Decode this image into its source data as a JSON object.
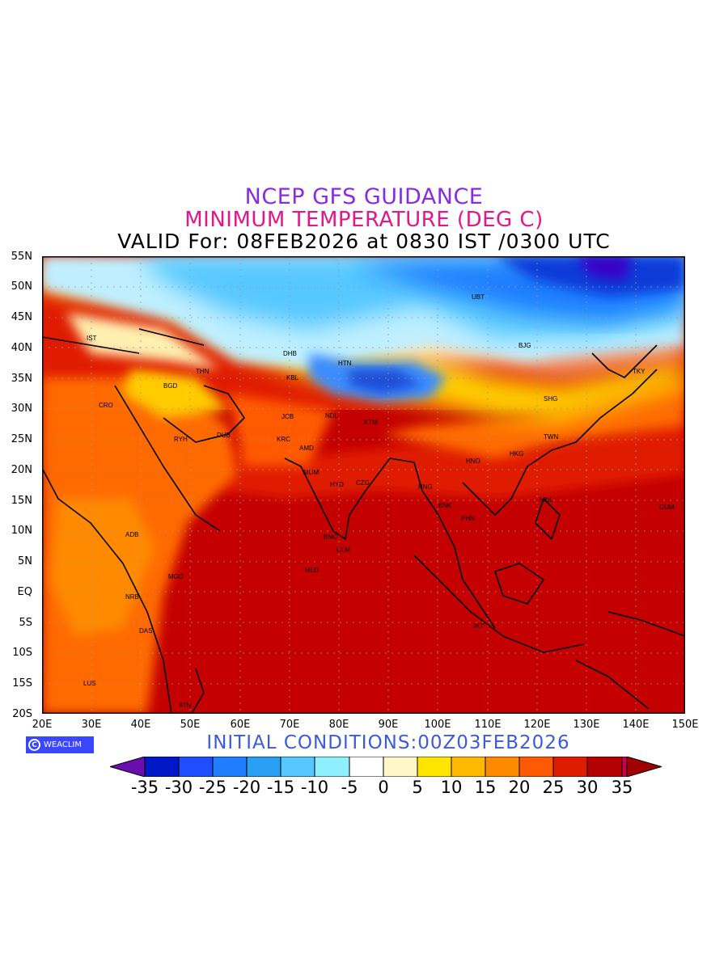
{
  "header": {
    "line1": "NCEP GFS GUIDANCE",
    "line2": "MINIMUM TEMPERATURE (DEG C)",
    "line3": "VALID For: 08FEB2026 at 0830 IST /0300 UTC"
  },
  "footer": {
    "badge": "WEACLIM",
    "initial_conditions": "INITIAL CONDITIONS:00Z03FEB2026"
  },
  "axes": {
    "lat_labels": [
      "55N",
      "50N",
      "45N",
      "40N",
      "35N",
      "30N",
      "25N",
      "20N",
      "15N",
      "10N",
      "5N",
      "EQ",
      "5S",
      "10S",
      "15S",
      "20S"
    ],
    "lon_labels": [
      "20E",
      "30E",
      "40E",
      "50E",
      "60E",
      "70E",
      "80E",
      "90E",
      "100E",
      "110E",
      "120E",
      "130E",
      "140E",
      "150E"
    ]
  },
  "colorbar": {
    "labels": [
      "-35",
      "-30",
      "-25",
      "-20",
      "-15",
      "-10",
      "-5",
      "0",
      "5",
      "10",
      "15",
      "20",
      "25",
      "30",
      "35"
    ],
    "colors": [
      "#6a0dad",
      "#0019c8",
      "#1f4dff",
      "#1f7dff",
      "#2aa0f5",
      "#57c8ff",
      "#8ef0ff",
      "#ffffff",
      "#fff7c8",
      "#ffe400",
      "#ffb900",
      "#ff8a00",
      "#ff5a00",
      "#e01c00",
      "#b40000",
      "#c8004e",
      "#a00000"
    ]
  },
  "cities": [
    "IST",
    "THN",
    "BGD",
    "CRO",
    "RYH",
    "DUB",
    "DHB",
    "KBL",
    "HTN",
    "JCB",
    "KRC",
    "AMD",
    "NDL",
    "MUM",
    "HYD",
    "CZG",
    "BNG",
    "CLM",
    "MLD",
    "KTM",
    "UBT",
    "BJG",
    "TKY",
    "SHG",
    "TWN",
    "HKG",
    "HNO",
    "RNG",
    "BNK",
    "PHN",
    "MNL",
    "GUM",
    "JKT",
    "ADB",
    "NRB",
    "MGD",
    "DAS",
    "LUS",
    "ATN"
  ]
}
